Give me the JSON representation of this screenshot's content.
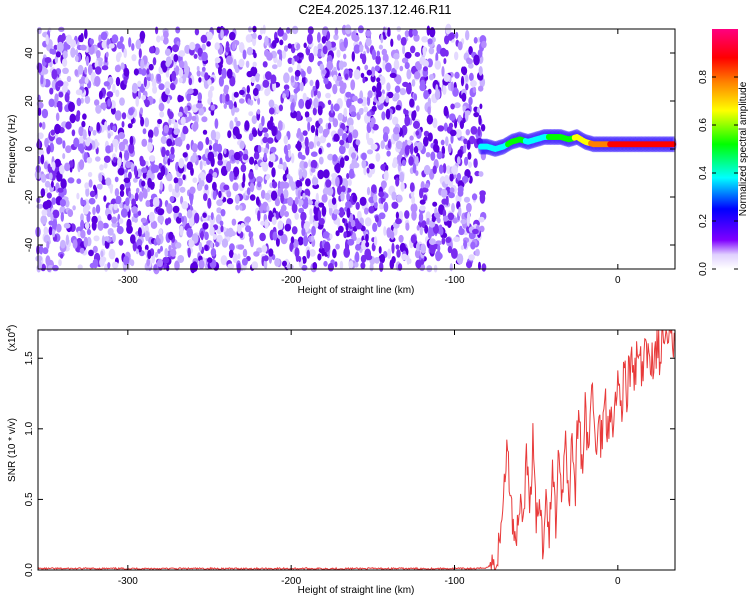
{
  "title": "C2E4.2025.137.12.46.R11",
  "colors": {
    "background": "#ffffff",
    "snr_line": "#e83a3a",
    "spec_purple_dark": "#5a00e0",
    "spec_purple_light": "#c9b3ff",
    "spec_colormap": [
      "#ffffff",
      "#8000ff",
      "#0000ff",
      "#00ffff",
      "#00ff00",
      "#ffff00",
      "#ff8000",
      "#ff0000",
      "#ff0080"
    ]
  },
  "chart_data": [
    {
      "type": "heatmap",
      "xlabel": "Height of straight line (km)",
      "ylabel": "Frequency (Hz)",
      "xlim": [
        -355,
        35
      ],
      "ylim": [
        -50,
        50
      ],
      "xticks": [
        -300,
        -200,
        -100,
        0
      ],
      "yticks": [
        -40,
        -20,
        0,
        20,
        40
      ],
      "noise_region": {
        "x_range": [
          -355,
          -82
        ],
        "y_range": [
          -50,
          50
        ],
        "amplitude": "0.0-0.2"
      },
      "signal_trace": {
        "x": [
          -84,
          -80,
          -75,
          -70,
          -65,
          -60,
          -55,
          -50,
          -45,
          -40,
          -35,
          -30,
          -25,
          -20,
          -15,
          -10,
          -5,
          0,
          5,
          10,
          15,
          20,
          25,
          30,
          35
        ],
        "y": [
          1,
          1,
          0,
          1,
          3,
          4,
          3,
          4,
          5,
          5,
          5,
          4,
          5,
          3,
          2,
          2,
          2,
          2,
          2,
          2,
          2,
          2,
          2,
          2,
          2
        ],
        "amplitude": [
          0.5,
          0.5,
          0.45,
          0.5,
          0.55,
          0.55,
          0.5,
          0.5,
          0.5,
          0.55,
          0.6,
          0.6,
          0.7,
          0.75,
          0.8,
          0.85,
          0.88,
          0.9,
          0.9,
          0.92,
          0.95,
          0.95,
          0.97,
          0.98,
          0.98
        ]
      },
      "colorbar": {
        "label": "Normalized spectral amplitude",
        "range": [
          0.0,
          1.0
        ],
        "ticks": [
          "0.0",
          "0.2",
          "0.4",
          "0.6",
          "0.8"
        ],
        "tick_values": [
          0.0,
          0.2,
          0.4,
          0.6,
          0.8
        ]
      }
    },
    {
      "type": "line",
      "xlabel": "Height of straight line (km)",
      "ylabel": "SNR (10 * v/v)",
      "y_scale_label": "(x10",
      "y_scale_exp": "4",
      "xlim": [
        -355,
        35
      ],
      "ylim": [
        0,
        1.7
      ],
      "xticks": [
        -300,
        -200,
        -100,
        0
      ],
      "yticks": [
        "0.0",
        "0.5",
        "1.0",
        "1.5"
      ],
      "ytick_values": [
        0.0,
        0.5,
        1.0,
        1.5
      ],
      "series": [
        {
          "x": [
            -355,
            -200,
            -85,
            -80,
            -75,
            -72,
            -70,
            -68,
            -66,
            -64,
            -62,
            -60,
            -58,
            -56,
            -54,
            -52,
            -50,
            -48,
            -46,
            -44,
            -42,
            -40,
            -38,
            -36,
            -34,
            -32,
            -30,
            -28,
            -26,
            -24,
            -22,
            -20,
            -18,
            -16,
            -14,
            -12,
            -10,
            -8,
            -6,
            -4,
            -2,
            0,
            2,
            4,
            6,
            8,
            10,
            12,
            14,
            16,
            18,
            20,
            22,
            24,
            26,
            28,
            30,
            35
          ],
          "y": [
            0.01,
            0.01,
            0.01,
            0.02,
            0.05,
            0.2,
            0.55,
            0.85,
            0.6,
            0.3,
            0.25,
            0.5,
            0.35,
            0.8,
            0.45,
            0.9,
            0.3,
            0.55,
            0.15,
            0.6,
            0.25,
            0.7,
            0.35,
            0.9,
            0.5,
            1.05,
            0.45,
            0.95,
            0.6,
            1.2,
            0.7,
            1.1,
            0.85,
            1.3,
            0.9,
            1.0,
            0.95,
            1.2,
            1.05,
            1.15,
            1.1,
            1.3,
            1.2,
            1.35,
            1.3,
            1.45,
            1.35,
            1.5,
            1.4,
            1.45,
            1.5,
            1.55,
            1.5,
            1.6,
            1.55,
            1.65,
            1.6,
            1.62
          ]
        }
      ]
    }
  ]
}
